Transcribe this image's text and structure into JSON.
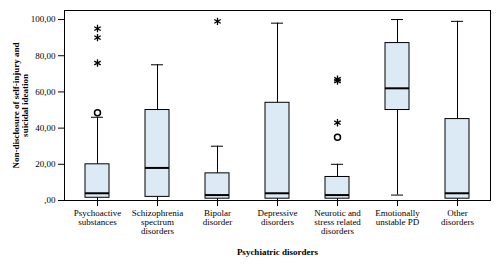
{
  "chart_data": {
    "type": "box",
    "x_label": "Psychiatric disorders",
    "y_label": "Non-disclosure of self-injury and suicidal ideation",
    "categories": [
      "Psychoactive substances",
      "Schizophrenia spectrum disorders",
      "Bipolar disorder",
      "Depressive disorders",
      "Neurotic and stress related disorders",
      "Emotionally unstable PD",
      "Other disorders"
    ],
    "whisker_low": [
      0,
      0,
      0,
      0,
      0,
      3,
      0
    ],
    "q1": [
      1.5,
      2,
      1,
      1,
      1,
      50,
      1
    ],
    "median": [
      4,
      18,
      3,
      4,
      3,
      62,
      4
    ],
    "q3": [
      20,
      50,
      15,
      54,
      13,
      87,
      45
    ],
    "whisker_high": [
      46,
      75,
      30,
      98,
      20,
      100,
      99
    ],
    "outliers": [
      [
        48.5
      ],
      [],
      [],
      [],
      [
        35
      ],
      [],
      []
    ],
    "extremes": [
      [
        76,
        90,
        95
      ],
      [],
      [
        99
      ],
      [],
      [
        43,
        66,
        67
      ],
      [],
      []
    ],
    "color": "#dceaf6",
    "ylim": [
      0,
      105
    ],
    "yticks": [
      {
        "value": 0,
        "label": ",00"
      },
      {
        "value": 20,
        "label": "20,00"
      },
      {
        "value": 40,
        "label": "40,00"
      },
      {
        "value": 60,
        "label": "60,00"
      },
      {
        "value": 80,
        "label": "80,00"
      },
      {
        "value": 100,
        "label": "100,00"
      }
    ]
  }
}
